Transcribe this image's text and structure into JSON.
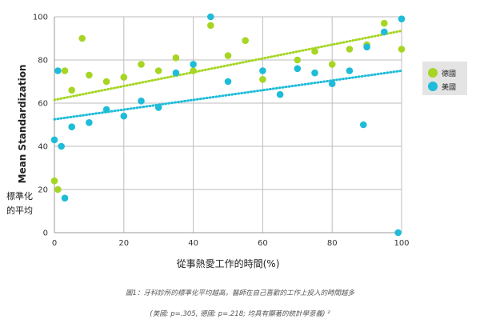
{
  "chart_data": {
    "type": "scatter",
    "xlabel": "從事熱愛工作的時間(%)",
    "ylabel": "Mean Standardization",
    "ylabel_zh": "標準化的平均",
    "xlim": [
      0,
      100
    ],
    "ylim": [
      0,
      100
    ],
    "x_ticks": [
      0,
      20,
      40,
      60,
      80,
      100
    ],
    "y_ticks": [
      0,
      20,
      40,
      60,
      80,
      100
    ],
    "grid": true,
    "legend_position": "right",
    "series": [
      {
        "name": "德國",
        "color": "#a6d523",
        "points": [
          [
            0,
            24
          ],
          [
            1,
            20
          ],
          [
            3,
            75
          ],
          [
            5,
            66
          ],
          [
            8,
            90
          ],
          [
            10,
            73
          ],
          [
            15,
            70
          ],
          [
            20,
            72
          ],
          [
            25,
            78
          ],
          [
            30,
            75
          ],
          [
            35,
            81
          ],
          [
            40,
            75
          ],
          [
            45,
            96
          ],
          [
            50,
            82
          ],
          [
            55,
            89
          ],
          [
            60,
            71
          ],
          [
            70,
            80
          ],
          [
            75,
            84
          ],
          [
            80,
            78
          ],
          [
            85,
            85
          ],
          [
            90,
            87
          ],
          [
            95,
            97
          ],
          [
            100,
            85
          ]
        ],
        "trend": [
          [
            0,
            61.5
          ],
          [
            100,
            93.5
          ]
        ]
      },
      {
        "name": "美國",
        "color": "#1ebcd8",
        "points": [
          [
            0,
            43
          ],
          [
            1,
            75
          ],
          [
            2,
            40
          ],
          [
            3,
            16
          ],
          [
            5,
            49
          ],
          [
            10,
            51
          ],
          [
            15,
            57
          ],
          [
            20,
            54
          ],
          [
            25,
            61
          ],
          [
            30,
            58
          ],
          [
            35,
            74
          ],
          [
            40,
            78
          ],
          [
            45,
            100
          ],
          [
            50,
            70
          ],
          [
            60,
            75
          ],
          [
            65,
            64
          ],
          [
            70,
            76
          ],
          [
            75,
            74
          ],
          [
            80,
            69
          ],
          [
            85,
            75
          ],
          [
            89,
            50
          ],
          [
            90,
            86
          ],
          [
            95,
            93
          ],
          [
            99,
            0
          ],
          [
            100,
            99
          ]
        ],
        "trend": [
          [
            0,
            52.5
          ],
          [
            100,
            75
          ]
        ]
      }
    ]
  },
  "caption": {
    "line1": "圖1：牙科診所的標準化平均越高，醫師在自己喜歡的工作上投入的時間越多",
    "line2": "(美國: p=.305, 德國: p=.218; 均具有顯著的統計學意義) ²"
  }
}
